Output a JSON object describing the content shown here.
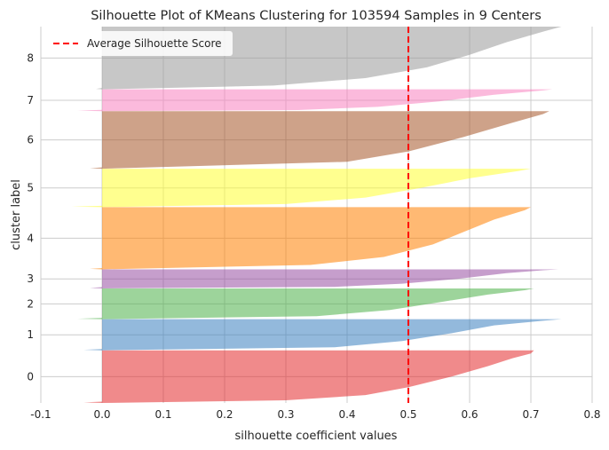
{
  "chart_data": {
    "type": "area",
    "title": "Silhouette Plot of KMeans Clustering for 103594 Samples in 9 Centers",
    "xlabel": "silhouette coefficient values",
    "ylabel": "cluster label",
    "xlim": [
      -0.1,
      0.8
    ],
    "xticks": [
      -0.1,
      0.0,
      0.1,
      0.2,
      0.3,
      0.4,
      0.5,
      0.6,
      0.7,
      0.8
    ],
    "xtick_labels": [
      "-0.1",
      "0.0",
      "0.1",
      "0.2",
      "0.3",
      "0.4",
      "0.5",
      "0.6",
      "0.7",
      "0.8"
    ],
    "ylim": [
      0,
      1
    ],
    "grid": true,
    "legend": {
      "position": "upper-left",
      "entries": [
        {
          "label": "Average Silhouette Score",
          "color": "#ff0000",
          "style": "dashed"
        }
      ]
    },
    "average_silhouette_score": 0.5,
    "clusters": [
      {
        "label": "0",
        "color": "#e3292c",
        "band": [
          0.0,
          0.193
        ],
        "min": -0.03,
        "max": 0.705,
        "profile": [
          [
            0.0,
            0.705
          ],
          [
            0.06,
            0.7
          ],
          [
            0.15,
            0.67
          ],
          [
            0.3,
            0.63
          ],
          [
            0.5,
            0.57
          ],
          [
            0.7,
            0.5
          ],
          [
            0.85,
            0.43
          ],
          [
            0.95,
            0.3
          ],
          [
            1.0,
            0.0
          ]
        ]
      },
      {
        "label": "1",
        "color": "#3a7fbf",
        "band": [
          0.193,
          0.307
        ],
        "min": -0.03,
        "max": 0.75,
        "profile": [
          [
            0.0,
            0.75
          ],
          [
            0.05,
            0.72
          ],
          [
            0.2,
            0.64
          ],
          [
            0.45,
            0.57
          ],
          [
            0.7,
            0.49
          ],
          [
            0.9,
            0.38
          ],
          [
            1.0,
            0.0
          ]
        ]
      },
      {
        "label": "2",
        "color": "#4cb049",
        "band": [
          0.307,
          0.42
        ],
        "min": -0.04,
        "max": 0.705,
        "profile": [
          [
            0.0,
            0.705
          ],
          [
            0.06,
            0.69
          ],
          [
            0.2,
            0.63
          ],
          [
            0.45,
            0.55
          ],
          [
            0.7,
            0.47
          ],
          [
            0.9,
            0.35
          ],
          [
            1.0,
            0.0
          ]
        ]
      },
      {
        "label": "3",
        "color": "#984ea3",
        "band": [
          0.42,
          0.49
        ],
        "min": -0.02,
        "max": 0.745,
        "profile": [
          [
            0.0,
            0.745
          ],
          [
            0.05,
            0.72
          ],
          [
            0.2,
            0.66
          ],
          [
            0.5,
            0.58
          ],
          [
            0.75,
            0.49
          ],
          [
            0.92,
            0.38
          ],
          [
            1.0,
            0.0
          ]
        ]
      },
      {
        "label": "4",
        "color": "#ff7f00",
        "band": [
          0.49,
          0.718
        ],
        "min": -0.02,
        "max": 0.7,
        "profile": [
          [
            0.0,
            0.7
          ],
          [
            0.05,
            0.69
          ],
          [
            0.2,
            0.64
          ],
          [
            0.4,
            0.59
          ],
          [
            0.6,
            0.54
          ],
          [
            0.8,
            0.46
          ],
          [
            0.93,
            0.34
          ],
          [
            1.0,
            0.0
          ]
        ]
      },
      {
        "label": "5",
        "color": "#ffff33",
        "band": [
          0.718,
          0.859
        ],
        "min": -0.05,
        "max": 0.7,
        "profile": [
          [
            0.0,
            0.7
          ],
          [
            0.06,
            0.68
          ],
          [
            0.25,
            0.6
          ],
          [
            0.5,
            0.52
          ],
          [
            0.75,
            0.43
          ],
          [
            0.92,
            0.3
          ],
          [
            1.0,
            0.0
          ]
        ]
      },
      {
        "label": "6",
        "color": "#a65628",
        "band": [
          0.859,
          1.07
        ],
        "min": -0.02,
        "max": 0.73,
        "profile": [
          [
            0.0,
            0.73
          ],
          [
            0.05,
            0.72
          ],
          [
            0.2,
            0.67
          ],
          [
            0.45,
            0.59
          ],
          [
            0.7,
            0.5
          ],
          [
            0.88,
            0.4
          ],
          [
            1.0,
            0.0
          ]
        ]
      },
      {
        "label": "7",
        "color": "#f781bf",
        "band": [
          1.07,
          1.15
        ],
        "min": -0.04,
        "max": 0.735,
        "profile": [
          [
            0.0,
            0.735
          ],
          [
            0.05,
            0.72
          ],
          [
            0.25,
            0.64
          ],
          [
            0.55,
            0.55
          ],
          [
            0.8,
            0.45
          ],
          [
            0.95,
            0.32
          ],
          [
            1.0,
            0.0
          ]
        ]
      },
      {
        "label": "8",
        "color": "#999999",
        "band": [
          1.15,
          1.38
        ],
        "min": -0.01,
        "max": 0.75,
        "profile": [
          [
            0.0,
            0.75
          ],
          [
            0.08,
            0.72
          ],
          [
            0.25,
            0.66
          ],
          [
            0.45,
            0.6
          ],
          [
            0.65,
            0.53
          ],
          [
            0.82,
            0.43
          ],
          [
            0.94,
            0.28
          ],
          [
            1.0,
            0.0
          ]
        ]
      }
    ]
  }
}
